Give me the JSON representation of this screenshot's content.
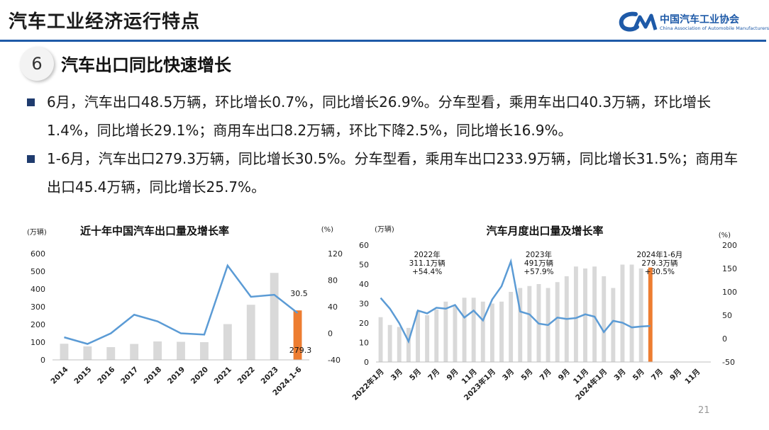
{
  "header": {
    "title": "汽车工业经济运行特点"
  },
  "logo": {
    "name_cn": "中国汽车工业协会",
    "name_en": "China Association of Automobile Manufacturers",
    "mark": "CAAM logo"
  },
  "section": {
    "number": "6",
    "title": "汽车出口同比快速增长"
  },
  "bullets": [
    {
      "text": "6月，汽车出口48.5万辆，环比增长0.7%，同比增长26.9%。分车型看，乘用车出口40.3万辆，环比增长1.4%，同比增长29.1%；商用车出口8.2万辆，环比下降2.5%，同比增长16.9%。"
    },
    {
      "text": "1-6月，汽车出口279.3万辆，同比增长30.5%。分车型看，乘用车出口233.9万辆，同比增长31.5%；商用车出口45.4万辆，同比增长25.7%。"
    }
  ],
  "colors": {
    "accent": "#1e5aa8",
    "bar": "#d9d9d9",
    "bar_highlight": "#ed7d31",
    "line": "#5b9bd5"
  },
  "page_number": "21",
  "chart_data": [
    {
      "type": "bar",
      "title": "近十年中国汽车出口量及增长率",
      "ylabel": "(万辆)",
      "y2label": "(%)",
      "categories": [
        "2014",
        "2015",
        "2016",
        "2017",
        "2018",
        "2019",
        "2020",
        "2021",
        "2022",
        "2023",
        "2024.1-6"
      ],
      "series": [
        {
          "values": [
            91,
            76,
            72,
            90,
            104,
            102,
            100,
            202,
            311,
            491,
            279.3
          ]
        },
        {
          "values": [
            -6,
            -16,
            0,
            28,
            18,
            0,
            -2,
            102,
            55,
            58,
            30.5
          ]
        }
      ],
      "ylim": [
        0,
        600
      ],
      "yticks": [
        "0",
        "100",
        "200",
        "300",
        "400",
        "500",
        "600"
      ],
      "y2lim": [
        -40,
        120
      ],
      "y2ticks": [
        "-40",
        "0",
        "40",
        "80",
        "120"
      ],
      "annotations": [
        "30.5",
        "279.3"
      ],
      "grid": false
    },
    {
      "type": "bar",
      "title": "汽车月度出口量及增长率",
      "ylabel": "(万辆)",
      "y2label": "(%)",
      "x_tick_labels": [
        "2022年1月",
        "3月",
        "5月",
        "7月",
        "9月",
        "11月",
        "2023年1月",
        "3月",
        "5月",
        "7月",
        "9月",
        "11月",
        "2024年1月",
        "3月",
        "5月",
        "7月",
        "9月",
        "11月"
      ],
      "series": [
        {
          "values": [
            23,
            19,
            18,
            17.5,
            26,
            24,
            27,
            31,
            29,
            33,
            33,
            31,
            30,
            31,
            36,
            38,
            39,
            40,
            38,
            41,
            44,
            49,
            48,
            49,
            44,
            38,
            50,
            50,
            48,
            48.5
          ]
        },
        {
          "values": [
            87,
            64,
            33,
            -6,
            60,
            54,
            66,
            64,
            72,
            45,
            60,
            39,
            84,
            112,
            165,
            58,
            52,
            32,
            29,
            45,
            42,
            44,
            52,
            47,
            14,
            38,
            34,
            24,
            26,
            27
          ]
        }
      ],
      "ylim": [
        0,
        60
      ],
      "yticks": [
        "0",
        "10",
        "20",
        "30",
        "40",
        "50",
        "60"
      ],
      "y2lim": [
        -50,
        200
      ],
      "y2ticks": [
        "-50",
        "0",
        "50",
        "100",
        "150",
        "200"
      ],
      "annotations": [
        {
          "lines": [
            "2022年",
            "311.1万辆",
            "+54.4%"
          ]
        },
        {
          "lines": [
            "2023年",
            "491万辆",
            "+57.9%"
          ]
        },
        {
          "lines": [
            "2024年1-6月",
            "279.3万辆",
            "+30.5%"
          ]
        }
      ],
      "grid": false
    }
  ]
}
